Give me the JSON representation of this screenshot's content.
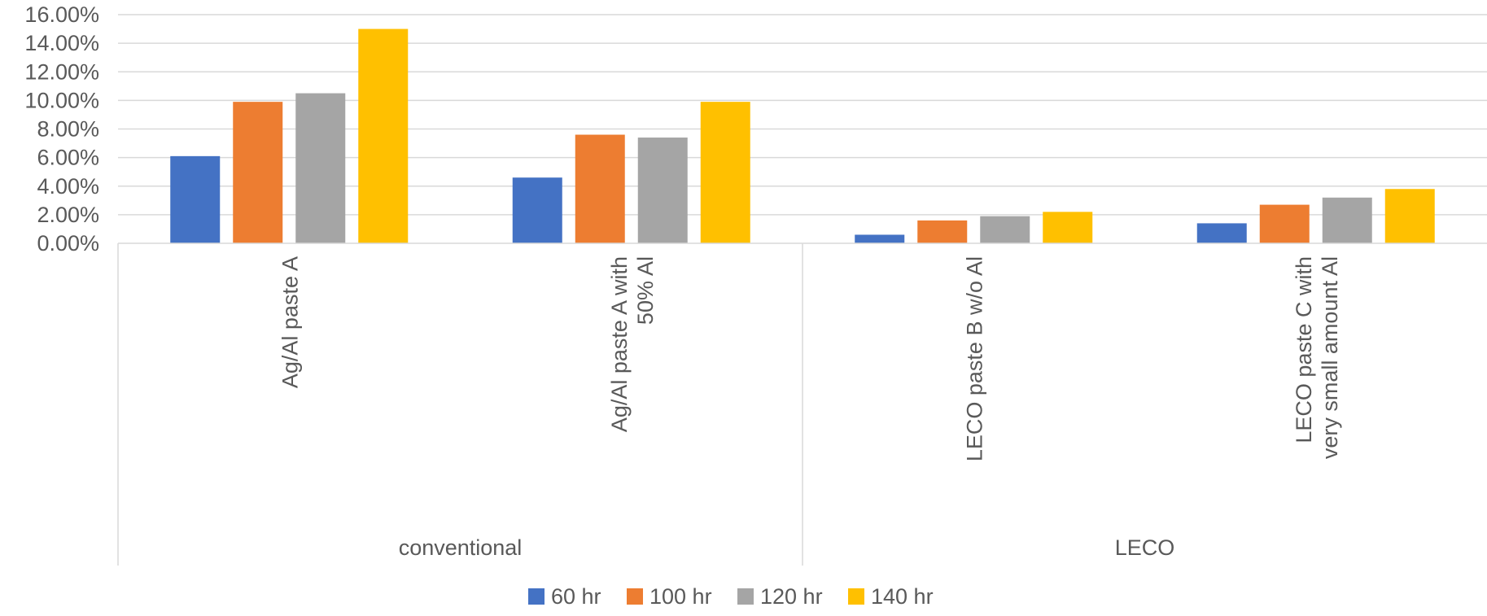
{
  "chart_data": {
    "type": "bar",
    "title": "",
    "xlabel": "",
    "ylabel": "",
    "ylim": [
      0,
      0.16
    ],
    "y_ticks": [
      "0.00%",
      "2.00%",
      "4.00%",
      "6.00%",
      "8.00%",
      "10.00%",
      "12.00%",
      "14.00%",
      "16.00%"
    ],
    "grid": true,
    "legend_position": "bottom",
    "groups": [
      {
        "name": "conventional",
        "categories": [
          [
            "Ag/Al paste A"
          ],
          [
            "Ag/Al paste A with",
            "50% Al"
          ]
        ]
      },
      {
        "name": "LECO",
        "categories": [
          [
            "LECO paste B w/o Al"
          ],
          [
            "LECO paste C with",
            "very small amount Al"
          ]
        ]
      }
    ],
    "series": [
      {
        "name": "60 hr",
        "color": "#4472C4",
        "values": [
          0.061,
          0.046,
          0.006,
          0.014
        ]
      },
      {
        "name": "100 hr",
        "color": "#ED7D31",
        "values": [
          0.099,
          0.076,
          0.016,
          0.027
        ]
      },
      {
        "name": "120 hr",
        "color": "#A5A5A5",
        "values": [
          0.105,
          0.074,
          0.019,
          0.032
        ]
      },
      {
        "name": "140 hr",
        "color": "#FFC000",
        "values": [
          0.15,
          0.099,
          0.022,
          0.038
        ]
      }
    ]
  }
}
